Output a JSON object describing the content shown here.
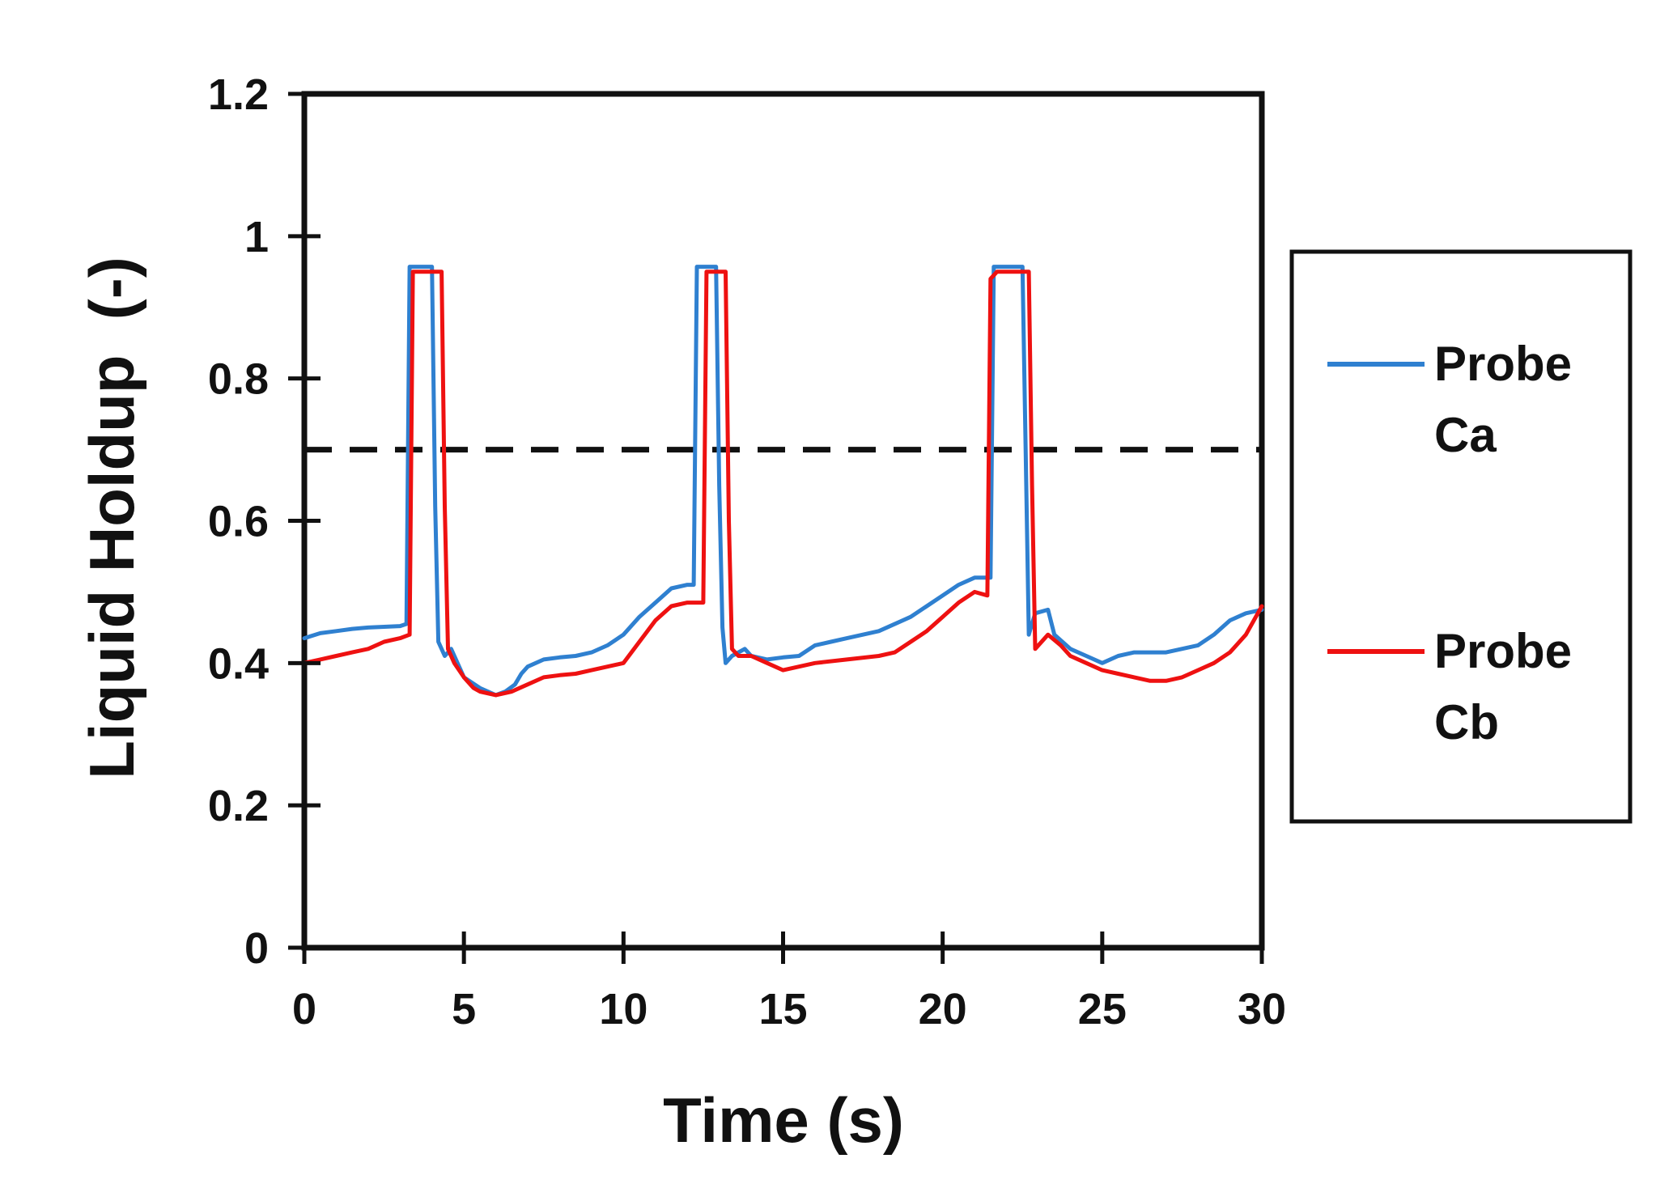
{
  "chart_data": {
    "type": "line",
    "xlabel": "Time (s)",
    "ylabel": "Liquid Holdup  (-)",
    "xlim": [
      0,
      30
    ],
    "ylim": [
      0,
      1.2
    ],
    "x_ticks": [
      "0",
      "5",
      "10",
      "15",
      "20",
      "25",
      "30"
    ],
    "y_ticks": [
      "0",
      "0.2",
      "0.4",
      "0.6",
      "0.8",
      "1",
      "1.2"
    ],
    "grid": false,
    "legend_position": "right",
    "reference_line": {
      "y": 0.7,
      "style": "dashed",
      "color": "#111111"
    },
    "series": [
      {
        "name": "Probe\nCa",
        "legend_lines": [
          "Probe",
          "Ca"
        ],
        "color": "#2f80d0",
        "points": [
          [
            0,
            0.435
          ],
          [
            0.5,
            0.442
          ],
          [
            1,
            0.445
          ],
          [
            1.5,
            0.448
          ],
          [
            2,
            0.45
          ],
          [
            2.5,
            0.451
          ],
          [
            3,
            0.452
          ],
          [
            3.2,
            0.455
          ],
          [
            3.3,
            0.957
          ],
          [
            4.0,
            0.957
          ],
          [
            4.1,
            0.62
          ],
          [
            4.2,
            0.43
          ],
          [
            4.4,
            0.41
          ],
          [
            4.6,
            0.42
          ],
          [
            5,
            0.38
          ],
          [
            5.5,
            0.365
          ],
          [
            6,
            0.355
          ],
          [
            6.3,
            0.36
          ],
          [
            6.6,
            0.37
          ],
          [
            6.8,
            0.385
          ],
          [
            7,
            0.395
          ],
          [
            7.5,
            0.405
          ],
          [
            8,
            0.408
          ],
          [
            8.5,
            0.41
          ],
          [
            9,
            0.415
          ],
          [
            9.5,
            0.425
          ],
          [
            10,
            0.44
          ],
          [
            10.5,
            0.465
          ],
          [
            11,
            0.485
          ],
          [
            11.5,
            0.505
          ],
          [
            12,
            0.51
          ],
          [
            12.2,
            0.51
          ],
          [
            12.3,
            0.957
          ],
          [
            12.9,
            0.957
          ],
          [
            13.0,
            0.65
          ],
          [
            13.1,
            0.45
          ],
          [
            13.2,
            0.4
          ],
          [
            13.4,
            0.41
          ],
          [
            13.8,
            0.42
          ],
          [
            14,
            0.41
          ],
          [
            14.5,
            0.405
          ],
          [
            15,
            0.408
          ],
          [
            15.5,
            0.41
          ],
          [
            16,
            0.425
          ],
          [
            16.5,
            0.43
          ],
          [
            17,
            0.435
          ],
          [
            18,
            0.445
          ],
          [
            19,
            0.465
          ],
          [
            19.5,
            0.48
          ],
          [
            20,
            0.495
          ],
          [
            20.5,
            0.51
          ],
          [
            21,
            0.52
          ],
          [
            21.5,
            0.52
          ],
          [
            21.6,
            0.957
          ],
          [
            22.5,
            0.957
          ],
          [
            22.6,
            0.7
          ],
          [
            22.7,
            0.44
          ],
          [
            22.9,
            0.47
          ],
          [
            23.3,
            0.475
          ],
          [
            23.5,
            0.44
          ],
          [
            24,
            0.42
          ],
          [
            24.5,
            0.41
          ],
          [
            25,
            0.4
          ],
          [
            25.5,
            0.41
          ],
          [
            26,
            0.415
          ],
          [
            27,
            0.415
          ],
          [
            28,
            0.425
          ],
          [
            28.5,
            0.44
          ],
          [
            29,
            0.46
          ],
          [
            29.5,
            0.47
          ],
          [
            30,
            0.475
          ]
        ]
      },
      {
        "name": "Probe\nCb",
        "legend_lines": [
          "Probe",
          "Cb"
        ],
        "color": "#ee1111",
        "points": [
          [
            0,
            0.4
          ],
          [
            0.5,
            0.405
          ],
          [
            1,
            0.41
          ],
          [
            1.5,
            0.415
          ],
          [
            2,
            0.42
          ],
          [
            2.5,
            0.43
          ],
          [
            3,
            0.435
          ],
          [
            3.3,
            0.44
          ],
          [
            3.4,
            0.95
          ],
          [
            4.3,
            0.95
          ],
          [
            4.4,
            0.62
          ],
          [
            4.5,
            0.42
          ],
          [
            4.7,
            0.4
          ],
          [
            5,
            0.38
          ],
          [
            5.3,
            0.365
          ],
          [
            5.5,
            0.36
          ],
          [
            6,
            0.355
          ],
          [
            6.5,
            0.36
          ],
          [
            7,
            0.37
          ],
          [
            7.5,
            0.38
          ],
          [
            8,
            0.383
          ],
          [
            8.5,
            0.385
          ],
          [
            9,
            0.39
          ],
          [
            9.5,
            0.395
          ],
          [
            10,
            0.4
          ],
          [
            10.5,
            0.43
          ],
          [
            11,
            0.46
          ],
          [
            11.5,
            0.48
          ],
          [
            12,
            0.485
          ],
          [
            12.5,
            0.485
          ],
          [
            12.6,
            0.95
          ],
          [
            13.2,
            0.95
          ],
          [
            13.3,
            0.6
          ],
          [
            13.4,
            0.42
          ],
          [
            13.6,
            0.41
          ],
          [
            14,
            0.41
          ],
          [
            14.5,
            0.4
          ],
          [
            15,
            0.39
          ],
          [
            15.5,
            0.395
          ],
          [
            16,
            0.4
          ],
          [
            17,
            0.405
          ],
          [
            18,
            0.41
          ],
          [
            18.5,
            0.415
          ],
          [
            19,
            0.43
          ],
          [
            19.5,
            0.445
          ],
          [
            20,
            0.465
          ],
          [
            20.5,
            0.485
          ],
          [
            21,
            0.5
          ],
          [
            21.4,
            0.495
          ],
          [
            21.5,
            0.94
          ],
          [
            21.7,
            0.95
          ],
          [
            22.7,
            0.95
          ],
          [
            22.8,
            0.65
          ],
          [
            22.9,
            0.42
          ],
          [
            23.3,
            0.44
          ],
          [
            23.7,
            0.425
          ],
          [
            24,
            0.41
          ],
          [
            24.5,
            0.4
          ],
          [
            25,
            0.39
          ],
          [
            25.5,
            0.385
          ],
          [
            26,
            0.38
          ],
          [
            26.5,
            0.375
          ],
          [
            27,
            0.375
          ],
          [
            27.5,
            0.38
          ],
          [
            28,
            0.39
          ],
          [
            28.5,
            0.4
          ],
          [
            29,
            0.415
          ],
          [
            29.5,
            0.44
          ],
          [
            30,
            0.48
          ]
        ]
      }
    ]
  }
}
